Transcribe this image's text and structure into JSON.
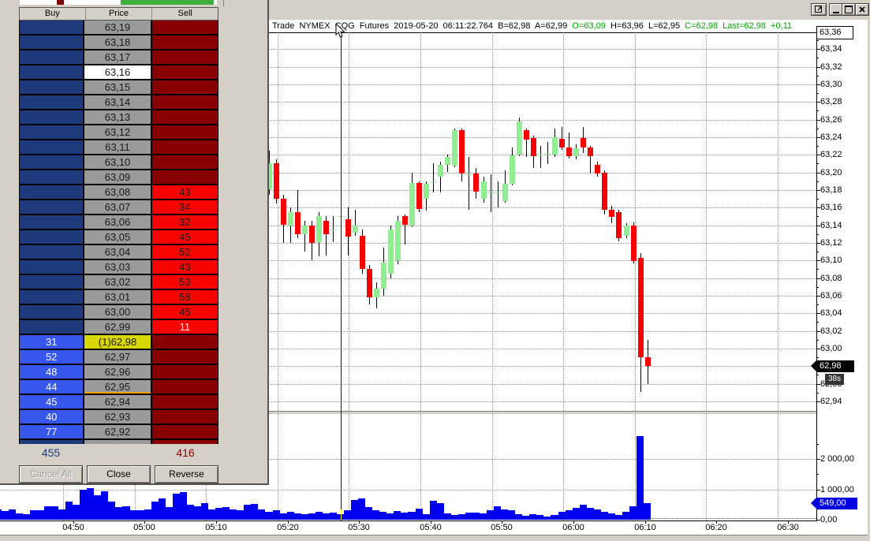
{
  "colors": {
    "window_gray": "#d4d0c8",
    "buy_dark": "#1e3a7a",
    "buy_bright": "#3656ec",
    "sell_dark": "#880000",
    "sell_bright": "#f80400",
    "price_gray": "#9a9a9a",
    "price_white": "#ffffff",
    "price_yellow": "#d8d800",
    "underline_orange": "#ffa500",
    "candle_up": "#90ee90",
    "candle_down": "#f40000",
    "volume_blue": "#0000f0",
    "title_green": "#00a800",
    "tag_black": "#000000",
    "tag_blue": "#0000e0"
  },
  "dom": {
    "header": {
      "buy": "Buy",
      "price": "Price",
      "sell": "Sell"
    },
    "rows": [
      {
        "price": "63,19",
        "buy": "",
        "sell": ""
      },
      {
        "price": "63,18",
        "buy": "",
        "sell": ""
      },
      {
        "price": "63,17",
        "buy": "",
        "sell": ""
      },
      {
        "price": "63,16",
        "buy": "",
        "sell": "",
        "price_style": "white"
      },
      {
        "price": "63,15",
        "buy": "",
        "sell": ""
      },
      {
        "price": "63,14",
        "buy": "",
        "sell": ""
      },
      {
        "price": "63,13",
        "buy": "",
        "sell": ""
      },
      {
        "price": "63,12",
        "buy": "",
        "sell": ""
      },
      {
        "price": "63,11",
        "buy": "",
        "sell": ""
      },
      {
        "price": "63,10",
        "buy": "",
        "sell": ""
      },
      {
        "price": "63,09",
        "buy": "",
        "sell": ""
      },
      {
        "price": "63,08",
        "buy": "",
        "sell": "43"
      },
      {
        "price": "63,07",
        "buy": "",
        "sell": "34"
      },
      {
        "price": "63,06",
        "buy": "",
        "sell": "32"
      },
      {
        "price": "63,05",
        "buy": "",
        "sell": "45"
      },
      {
        "price": "63,04",
        "buy": "",
        "sell": "52"
      },
      {
        "price": "63,03",
        "buy": "",
        "sell": "43"
      },
      {
        "price": "63,02",
        "buy": "",
        "sell": "53"
      },
      {
        "price": "63,01",
        "buy": "",
        "sell": "58"
      },
      {
        "price": "63,00",
        "buy": "",
        "sell": "45"
      },
      {
        "price": "62,99",
        "buy": "",
        "sell": "11",
        "sell_text": "white"
      },
      {
        "price": "(1)62,98",
        "buy": "31",
        "sell": "",
        "price_style": "yellow"
      },
      {
        "price": "62,97",
        "buy": "52",
        "sell": ""
      },
      {
        "price": "62,96",
        "buy": "48",
        "sell": ""
      },
      {
        "price": "62,95",
        "buy": "44",
        "sell": "",
        "underline": true
      },
      {
        "price": "62,94",
        "buy": "45",
        "sell": ""
      },
      {
        "price": "62,93",
        "buy": "40",
        "sell": ""
      },
      {
        "price": "62,92",
        "buy": "77",
        "sell": ""
      }
    ],
    "totals": {
      "buy": "455",
      "sell": "416"
    },
    "buttons": [
      {
        "label": "Cancel All",
        "disabled": true
      },
      {
        "label": "Close",
        "disabled": false
      },
      {
        "label": "Reverse",
        "disabled": false
      }
    ]
  },
  "chart": {
    "title_segments": [
      {
        "text": "Trade  NYMEX  CQG  Futures  2019-05-20  06:11:22.764  ",
        "color": "#000000"
      },
      {
        "text": "B=62,98  A=62,99  ",
        "color": "#000000"
      },
      {
        "text": "O=63,09  ",
        "color": "#00a800"
      },
      {
        "text": "H=63,96  L=62,95  ",
        "color": "#000000"
      },
      {
        "text": "C=62,98  Last=62,98  +0,11",
        "color": "#00a800"
      }
    ],
    "y_axis": {
      "top_boxed": "63,36",
      "labels": [
        "63,34",
        "63,32",
        "63,30",
        "63,28",
        "63,26",
        "63,24",
        "63,22",
        "63,20",
        "63,18",
        "63,16",
        "63,14",
        "63,12",
        "63,10",
        "63,08",
        "63,06",
        "63,04",
        "63,02",
        "63,00",
        "62,96",
        "62,94"
      ]
    },
    "volume_axis": {
      "labels": [
        "2 000,00",
        "1 000,00",
        "0,00"
      ]
    },
    "tags": {
      "price": "62,98",
      "countdown": "38s",
      "volume": "549,00"
    },
    "x_labels": [
      "04:50",
      "05:00",
      "05:10",
      "05:20",
      "05:30",
      "05:40",
      "05:50",
      "06:00",
      "06:10",
      "06:20",
      "06:30"
    ]
  },
  "window_controls": {
    "float": "float-window",
    "minimize": "_",
    "maximize": "[]",
    "close": "X"
  },
  "chart_data": {
    "type": "candlestick+volume",
    "instrument": "NYMEX CQG Futures",
    "date": "2019-05-20",
    "interval_minutes": 1,
    "y_axis": {
      "min": 62.94,
      "max": 63.36,
      "step": 0.02
    },
    "volume_axis": {
      "min": 0,
      "ticks": [
        0,
        1000,
        2000
      ]
    },
    "current": {
      "bid": 62.98,
      "ask": 62.99,
      "open": 63.09,
      "high": 63.96,
      "low": 62.95,
      "close": 62.98,
      "last": 62.98,
      "change": 0.11,
      "bar_volume": 549,
      "countdown": "38s"
    },
    "candles": {
      "start_time": "05:18",
      "ohlc": [
        [
          63.18,
          63.225,
          63.175,
          63.21
        ],
        [
          63.21,
          63.215,
          63.165,
          63.17
        ],
        [
          63.17,
          63.175,
          63.12,
          63.14
        ],
        [
          63.14,
          63.16,
          63.12,
          63.155
        ],
        [
          63.155,
          63.18,
          63.125,
          63.13
        ],
        [
          63.13,
          63.145,
          63.11,
          63.14
        ],
        [
          63.14,
          63.145,
          63.1,
          63.12
        ],
        [
          63.12,
          63.155,
          63.105,
          63.15
        ],
        [
          63.145,
          63.15,
          63.105,
          63.13
        ],
        [
          63.135,
          63.15,
          63.12,
          63.135
        ],
        [
          63.15,
          63.155,
          63.145,
          63.15
        ],
        [
          63.147,
          63.16,
          63.105,
          63.127
        ],
        [
          63.132,
          63.158,
          63.128,
          63.14
        ],
        [
          63.128,
          63.135,
          63.085,
          63.09
        ],
        [
          63.09,
          63.095,
          63.05,
          63.058
        ],
        [
          63.058,
          63.075,
          63.045,
          63.068
        ],
        [
          63.068,
          63.115,
          63.06,
          63.098
        ],
        [
          63.085,
          63.14,
          63.08,
          63.135
        ],
        [
          63.1,
          63.15,
          63.095,
          63.145
        ],
        [
          63.15,
          63.152,
          63.118,
          63.14
        ],
        [
          63.14,
          63.2,
          63.138,
          63.188
        ],
        [
          63.188,
          63.19,
          63.155,
          63.158
        ],
        [
          63.17,
          63.19,
          63.157,
          63.187
        ],
        [
          63.19,
          63.21,
          63.177,
          63.19
        ],
        [
          63.196,
          63.212,
          63.177,
          63.209
        ],
        [
          63.209,
          63.22,
          63.2,
          63.218
        ],
        [
          63.208,
          63.25,
          63.206,
          63.248
        ],
        [
          63.248,
          63.25,
          63.19,
          63.199
        ],
        [
          63.198,
          63.218,
          63.158,
          63.198
        ],
        [
          63.199,
          63.205,
          63.17,
          63.178
        ],
        [
          63.17,
          63.195,
          63.165,
          63.19
        ],
        [
          63.178,
          63.198,
          63.155,
          63.178
        ],
        [
          63.178,
          63.19,
          63.16,
          63.178
        ],
        [
          63.167,
          63.202,
          63.165,
          63.187
        ],
        [
          63.187,
          63.228,
          63.185,
          63.219
        ],
        [
          63.22,
          63.262,
          63.218,
          63.258
        ],
        [
          63.248,
          63.25,
          63.218,
          63.237
        ],
        [
          63.239,
          63.242,
          63.205,
          63.218
        ],
        [
          63.22,
          63.23,
          63.205,
          63.22
        ],
        [
          63.22,
          63.235,
          63.21,
          63.221
        ],
        [
          63.22,
          63.25,
          63.218,
          63.24
        ],
        [
          63.238,
          63.252,
          63.226,
          63.228
        ],
        [
          63.228,
          63.245,
          63.215,
          63.218
        ],
        [
          63.218,
          63.232,
          63.215,
          63.227
        ],
        [
          63.239,
          63.252,
          63.222,
          63.228
        ],
        [
          63.228,
          63.23,
          63.199,
          63.218
        ],
        [
          63.209,
          63.212,
          63.195,
          63.199
        ],
        [
          63.2,
          63.202,
          63.152,
          63.158
        ],
        [
          63.158,
          63.162,
          63.142,
          63.15
        ],
        [
          63.155,
          63.158,
          63.122,
          63.125
        ],
        [
          63.128,
          63.142,
          63.125,
          63.14
        ],
        [
          63.14,
          63.143,
          63.096,
          63.1
        ],
        [
          63.103,
          63.108,
          62.95,
          62.99
        ],
        [
          62.99,
          63.01,
          62.96,
          62.98
        ]
      ]
    },
    "volume": {
      "start_time": "04:40",
      "values": [
        340,
        290,
        340,
        210,
        180,
        315,
        315,
        450,
        450,
        340,
        600,
        500,
        1000,
        1050,
        800,
        950,
        600,
        420,
        450,
        300,
        300,
        350,
        600,
        700,
        420,
        850,
        900,
        500,
        450,
        550,
        350,
        380,
        420,
        350,
        320,
        500,
        520,
        350,
        250,
        300,
        220,
        250,
        200,
        180,
        220,
        260,
        200,
        230,
        180,
        300,
        660,
        700,
        420,
        300,
        260,
        220,
        280,
        240,
        260,
        370,
        180,
        630,
        550,
        210,
        160,
        180,
        240,
        240,
        210,
        320,
        450,
        340,
        320,
        180,
        130,
        180,
        160,
        110,
        160,
        260,
        320,
        390,
        500,
        400,
        350,
        250,
        200,
        150,
        250,
        430,
        2750,
        549
      ]
    }
  }
}
